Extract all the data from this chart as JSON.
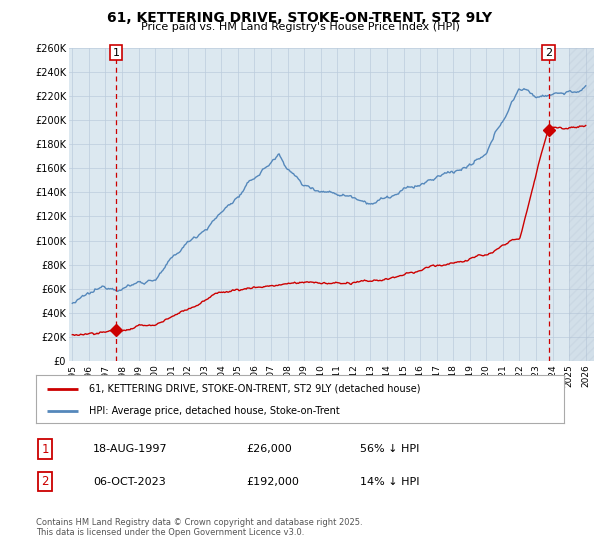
{
  "title": "61, KETTERING DRIVE, STOKE-ON-TRENT, ST2 9LY",
  "subtitle": "Price paid vs. HM Land Registry's House Price Index (HPI)",
  "ylim": [
    0,
    260000
  ],
  "xlim_start": 1994.8,
  "xlim_end": 2026.5,
  "yticks": [
    0,
    20000,
    40000,
    60000,
    80000,
    100000,
    120000,
    140000,
    160000,
    180000,
    200000,
    220000,
    240000,
    260000
  ],
  "ytick_labels": [
    "£0",
    "£20K",
    "£40K",
    "£60K",
    "£80K",
    "£100K",
    "£120K",
    "£140K",
    "£160K",
    "£180K",
    "£200K",
    "£220K",
    "£240K",
    "£260K"
  ],
  "xticks": [
    1995,
    1996,
    1997,
    1998,
    1999,
    2000,
    2001,
    2002,
    2003,
    2004,
    2005,
    2006,
    2007,
    2008,
    2009,
    2010,
    2011,
    2012,
    2013,
    2014,
    2015,
    2016,
    2017,
    2018,
    2019,
    2020,
    2021,
    2022,
    2023,
    2024,
    2025,
    2026
  ],
  "xtick_labels": [
    "1995",
    "1996",
    "1997",
    "1998",
    "1999",
    "2000",
    "2001",
    "2002",
    "2003",
    "2004",
    "2005",
    "2006",
    "2007",
    "2008",
    "2009",
    "2010",
    "2011",
    "2012",
    "2013",
    "2014",
    "2015",
    "2016",
    "2017",
    "2018",
    "2019",
    "2020",
    "2021",
    "2022",
    "2023",
    "2024",
    "2025",
    "2026"
  ],
  "sale1_x": 1997.63,
  "sale1_y": 26000,
  "sale2_x": 2023.77,
  "sale2_y": 192000,
  "sale1_date": "18-AUG-1997",
  "sale1_price": "£26,000",
  "sale1_hpi": "56% ↓ HPI",
  "sale2_date": "06-OCT-2023",
  "sale2_price": "£192,000",
  "sale2_hpi": "14% ↓ HPI",
  "red_line_color": "#cc0000",
  "blue_line_color": "#5588bb",
  "marker_color": "#cc0000",
  "vline_color": "#cc0000",
  "grid_color": "#bbccdd",
  "bg_color": "#dce8f0",
  "hatch_start": 2025.0,
  "legend_label_red": "61, KETTERING DRIVE, STOKE-ON-TRENT, ST2 9LY (detached house)",
  "legend_label_blue": "HPI: Average price, detached house, Stoke-on-Trent",
  "footer": "Contains HM Land Registry data © Crown copyright and database right 2025.\nThis data is licensed under the Open Government Licence v3.0."
}
